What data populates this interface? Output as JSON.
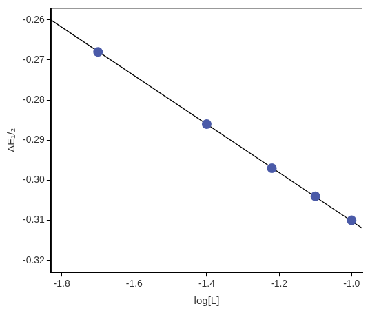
{
  "chart_data": {
    "type": "scatter",
    "x_label": "log[L]",
    "y_label": "ΔE₁/₂",
    "series": [
      {
        "type": "scatter",
        "color": "#4a5aa8",
        "marker": "circle",
        "x": [
          -1.7,
          -1.4,
          -1.22,
          -1.1,
          -1.0
        ],
        "values": [
          -0.268,
          -0.286,
          -0.297,
          -0.304,
          -0.31
        ]
      },
      {
        "type": "line",
        "color": "#000000",
        "line_style": "solid",
        "x": [
          -1.83,
          -0.97
        ],
        "values": [
          -0.26,
          -0.312
        ]
      }
    ],
    "xlim": [
      -1.83,
      -0.97
    ],
    "xticks": [
      -1.8,
      -1.6,
      -1.4,
      -1.2,
      {
        "value": -1,
        "label": "-1.0"
      }
    ],
    "ylim": [
      -0.323,
      -0.257
    ],
    "yticks": [
      -0.32,
      -0.31,
      {
        "value": -0.3,
        "label": "-0.30"
      },
      -0.29,
      -0.28,
      -0.27,
      -0.26
    ],
    "grid": false
  }
}
